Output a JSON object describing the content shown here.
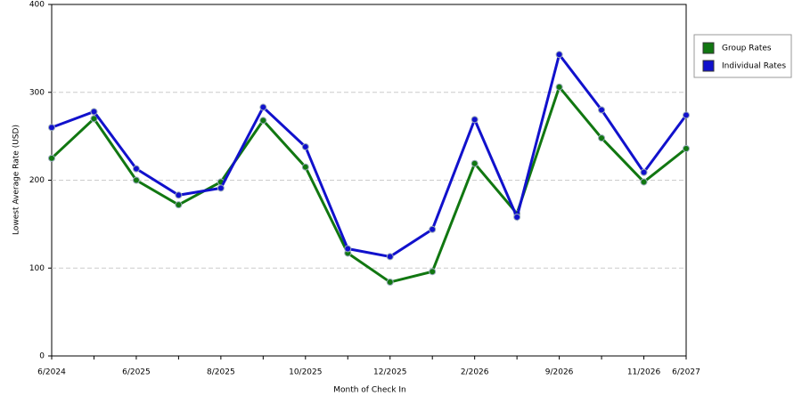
{
  "chart_data": {
    "type": "line",
    "x_label": "Month of Check In",
    "y_label": "Lowest Average Rate (USD)",
    "categories": [
      "6/2024",
      null,
      "6/2025",
      null,
      "8/2025",
      null,
      "10/2025",
      null,
      "12/2025",
      null,
      "2/2026",
      null,
      "9/2026",
      null,
      "11/2026",
      "6/2027"
    ],
    "series": [
      {
        "name": "Group Rates",
        "color": "#117711",
        "values": [
          225,
          270,
          200,
          172,
          198,
          268,
          215,
          117,
          84,
          96,
          219,
          162,
          306,
          248,
          198,
          236
        ]
      },
      {
        "name": "Individual Rates",
        "color": "#1111cc",
        "values": [
          260,
          278,
          213,
          183,
          191,
          283,
          238,
          122,
          113,
          144,
          269,
          158,
          343,
          280,
          209,
          274
        ]
      }
    ],
    "ylim": [
      0,
      400
    ],
    "yticks": [
      0,
      100,
      200,
      300,
      400
    ],
    "grid": true,
    "legend": "right"
  }
}
